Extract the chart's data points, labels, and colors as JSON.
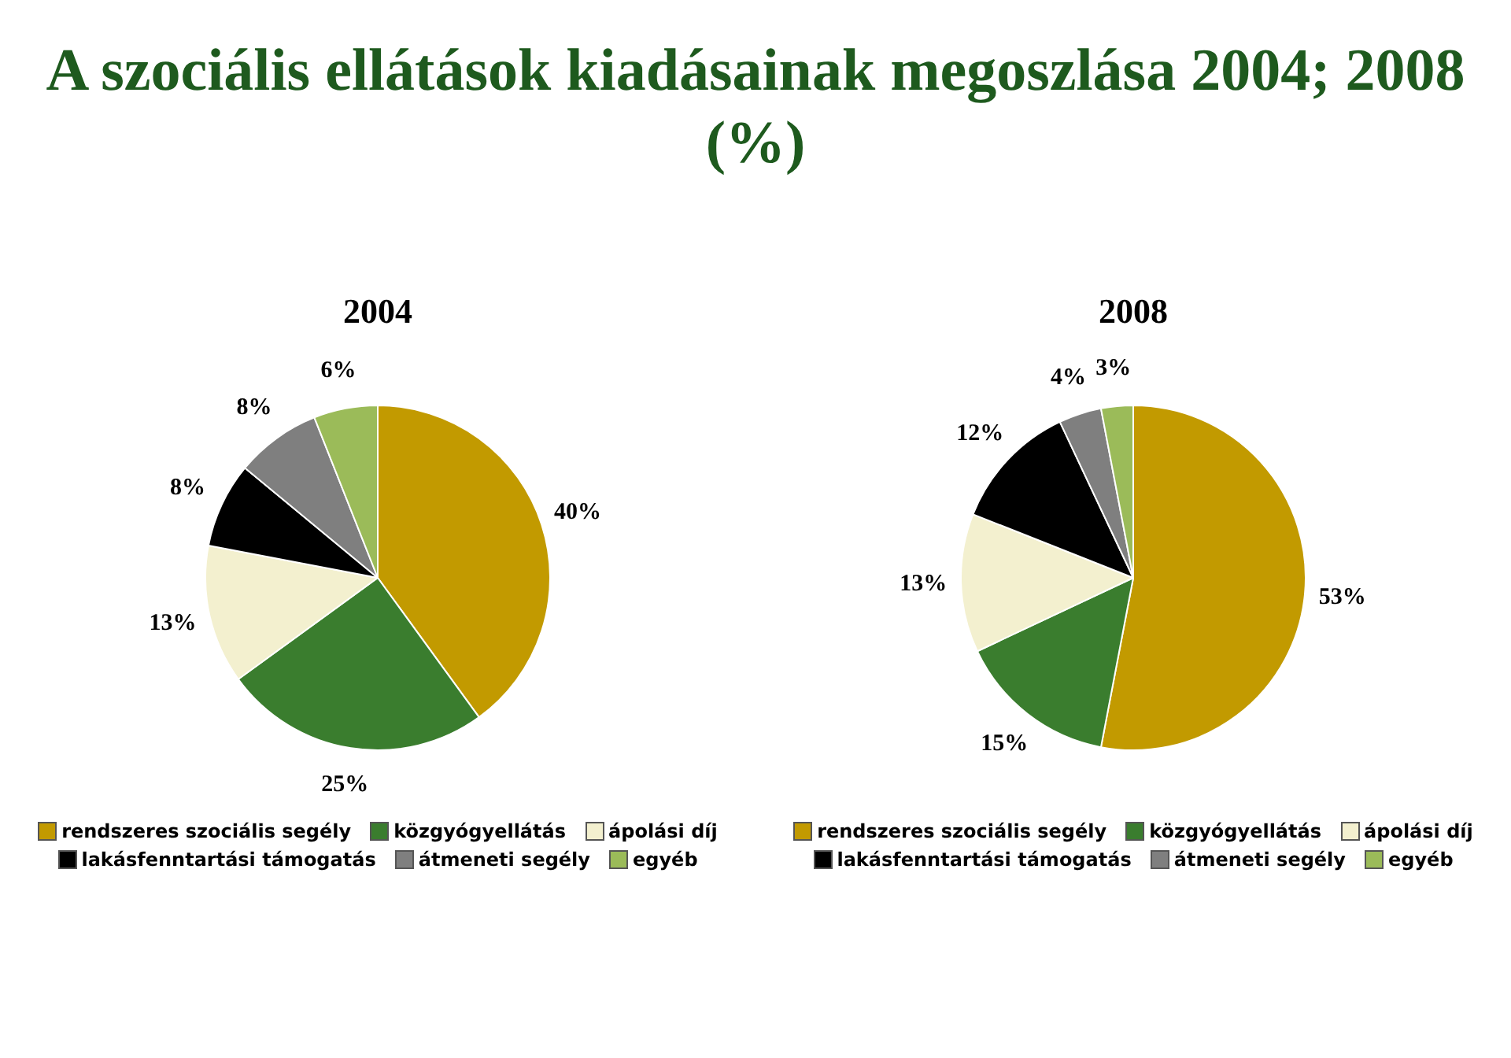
{
  "chart_data": [
    {
      "type": "pie",
      "title": "A szociális ellátások kiadásainak megoszlása 2004; 2008 (%)",
      "subtitle": "2004",
      "categories": [
        "rendszeres szociális segély",
        "közgyógyellátás",
        "ápolási díj",
        "lakásfenntartási támogatás",
        "átmeneti segély",
        "egyéb"
      ],
      "values": [
        40,
        25,
        13,
        8,
        8,
        6
      ],
      "value_labels": [
        "40%",
        "25%",
        "13%",
        "8%",
        "8%",
        "6%"
      ],
      "colors": [
        "#c29a00",
        "#3a7d2e",
        "#f3f0cf",
        "#000000",
        "#7f7f7f",
        "#9bbb59"
      ],
      "legend": "bottom"
    },
    {
      "type": "pie",
      "subtitle": "2008",
      "categories": [
        "rendszeres szociális segély",
        "közgyógyellátás",
        "ápolási díj",
        "lakásfenntartási támogatás",
        "átmeneti segély",
        "egyéb"
      ],
      "values": [
        53,
        15,
        13,
        12,
        4,
        3
      ],
      "value_labels": [
        "53%",
        "15%",
        "13%",
        "12%",
        "4%",
        "3%"
      ],
      "colors": [
        "#c29a00",
        "#3a7d2e",
        "#f3f0cf",
        "#000000",
        "#7f7f7f",
        "#9bbb59"
      ],
      "legend": "bottom"
    }
  ]
}
